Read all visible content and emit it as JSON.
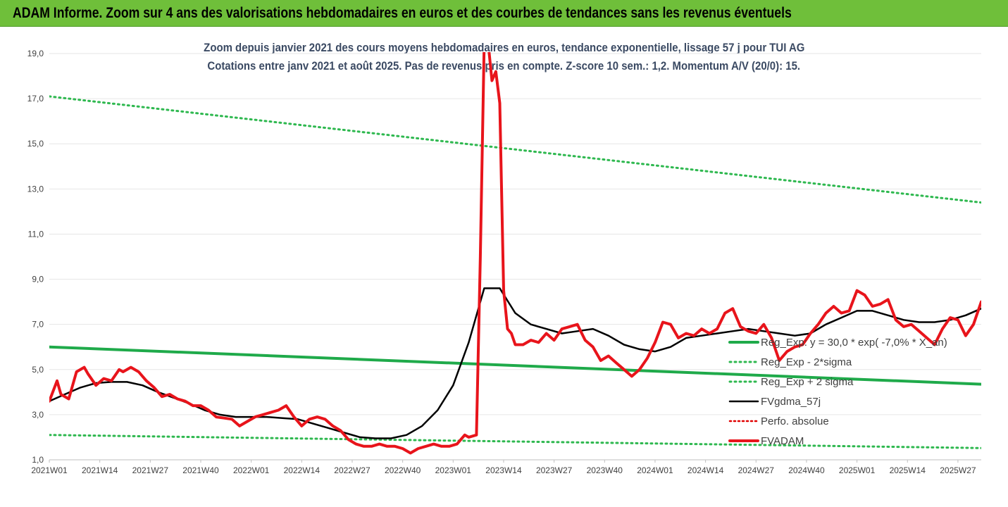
{
  "header": {
    "title": "ADAM Informe. Zoom sur 4 ans des valorisations hebdomadaires en euros et des courbes de tendances sans les revenus éventuels"
  },
  "chart_data": {
    "type": "line",
    "title": "Zoom depuis janvier 2021 des cours moyens hebdomadaires en euros, tendance exponentielle, lissage 57 j pour TUI AG",
    "subtitle": "Cotations entre janv 2021 et août 2025. Pas de revenus pris en compte. Z-score 10 sem.: 1,2. Momentum A/V (20/0): 15.",
    "xlabel": "",
    "ylabel": "",
    "ylim": [
      1.0,
      19.0
    ],
    "y_ticks": [
      "1,0",
      "3,0",
      "5,0",
      "7,0",
      "9,0",
      "11,0",
      "13,0",
      "15,0",
      "17,0",
      "19,0"
    ],
    "x_ticks": [
      "2021W01",
      "2021W14",
      "2021W27",
      "2021W40",
      "2022W01",
      "2022W14",
      "2022W27",
      "2022W40",
      "2023W01",
      "2023W14",
      "2023W27",
      "2023W40",
      "2024W01",
      "2024W14",
      "2024W27",
      "2024W40",
      "2025W01",
      "2025W14",
      "2025W27"
    ],
    "x_range_weeks": [
      0,
      240
    ],
    "grid": true,
    "legend_position": "right",
    "colors": {
      "reg": "#1faa4a",
      "band": "#2eb84f",
      "smooth": "#000000",
      "perf": "#e00000",
      "adam": "#e8141b"
    },
    "series": [
      {
        "name": "Reg_Exp: y = 30,0 * exp( -7,0% * X_an)",
        "style": "solid",
        "x": [
          0,
          240
        ],
        "values": [
          6.0,
          4.35
        ]
      },
      {
        "name": "Reg_Exp - 2*sigma",
        "style": "dotted",
        "x": [
          0,
          240
        ],
        "values": [
          2.1,
          1.52
        ]
      },
      {
        "name": "Reg_Exp + 2 sigma",
        "style": "dotted",
        "x": [
          0,
          240
        ],
        "values": [
          17.1,
          12.4
        ]
      },
      {
        "name": "FVgdma_57j",
        "style": "solid",
        "x": [
          0,
          4,
          8,
          12,
          16,
          20,
          24,
          28,
          32,
          36,
          40,
          44,
          48,
          52,
          56,
          60,
          64,
          68,
          72,
          76,
          80,
          84,
          88,
          92,
          96,
          100,
          104,
          108,
          112,
          116,
          120,
          124,
          128,
          132,
          136,
          140,
          144,
          148,
          152,
          156,
          160,
          164,
          168,
          172,
          176,
          180,
          184,
          188,
          192,
          196,
          200,
          204,
          208,
          212,
          216,
          220,
          224,
          228,
          232,
          236,
          240
        ],
        "values": [
          3.6,
          3.9,
          4.2,
          4.4,
          4.45,
          4.45,
          4.3,
          4.0,
          3.75,
          3.5,
          3.2,
          3.0,
          2.9,
          2.9,
          2.9,
          2.85,
          2.8,
          2.6,
          2.4,
          2.2,
          2.0,
          1.95,
          1.95,
          2.1,
          2.5,
          3.2,
          4.3,
          6.2,
          8.6,
          8.6,
          7.5,
          7.0,
          6.8,
          6.6,
          6.7,
          6.8,
          6.5,
          6.1,
          5.9,
          5.8,
          6.0,
          6.4,
          6.5,
          6.6,
          6.7,
          6.8,
          6.7,
          6.6,
          6.5,
          6.6,
          7.0,
          7.3,
          7.6,
          7.6,
          7.4,
          7.2,
          7.1,
          7.1,
          7.2,
          7.4,
          7.7
        ]
      },
      {
        "name": "Perfo. absolue",
        "style": "dotted",
        "x": [],
        "values": []
      },
      {
        "name": "FVADAM",
        "style": "solid",
        "x": [
          0,
          2,
          3,
          5,
          7,
          9,
          10,
          12,
          14,
          16,
          18,
          19,
          21,
          23,
          25,
          27,
          29,
          31,
          33,
          35,
          37,
          39,
          41,
          43,
          45,
          47,
          49,
          51,
          53,
          55,
          57,
          59,
          61,
          63,
          65,
          67,
          69,
          71,
          73,
          75,
          77,
          79,
          81,
          83,
          85,
          87,
          89,
          91,
          93,
          95,
          97,
          99,
          101,
          103,
          105,
          107,
          108,
          110,
          111,
          112,
          113,
          114,
          115,
          116,
          117,
          118,
          119,
          120,
          122,
          124,
          126,
          128,
          130,
          132,
          134,
          136,
          138,
          140,
          142,
          144,
          146,
          148,
          150,
          152,
          154,
          156,
          158,
          160,
          162,
          164,
          166,
          168,
          170,
          172,
          174,
          176,
          178,
          180,
          182,
          184,
          186,
          188,
          190,
          192,
          194,
          196,
          198,
          200,
          202,
          204,
          206,
          208,
          210,
          212,
          214,
          216,
          218,
          220,
          222,
          224,
          226,
          228,
          230,
          232,
          234,
          236,
          238,
          240
        ],
        "values": [
          3.6,
          4.5,
          3.9,
          3.7,
          4.9,
          5.1,
          4.8,
          4.3,
          4.6,
          4.5,
          5.0,
          4.9,
          5.1,
          4.9,
          4.5,
          4.2,
          3.8,
          3.9,
          3.7,
          3.6,
          3.4,
          3.4,
          3.2,
          2.9,
          2.85,
          2.8,
          2.5,
          2.7,
          2.9,
          3.0,
          3.1,
          3.2,
          3.4,
          2.9,
          2.5,
          2.8,
          2.9,
          2.8,
          2.5,
          2.3,
          1.9,
          1.7,
          1.6,
          1.6,
          1.7,
          1.6,
          1.6,
          1.5,
          1.3,
          1.5,
          1.6,
          1.7,
          1.6,
          1.6,
          1.7,
          2.1,
          2.0,
          2.1,
          10.0,
          19.5,
          19.5,
          17.8,
          18.2,
          16.8,
          8.5,
          6.8,
          6.6,
          6.1,
          6.1,
          6.3,
          6.2,
          6.6,
          6.3,
          6.8,
          6.9,
          7.0,
          6.3,
          6.0,
          5.4,
          5.6,
          5.3,
          5.0,
          4.7,
          5.0,
          5.5,
          6.2,
          7.1,
          7.0,
          6.4,
          6.6,
          6.5,
          6.8,
          6.6,
          6.8,
          7.5,
          7.7,
          6.9,
          6.7,
          6.6,
          7.0,
          6.4,
          5.4,
          5.8,
          6.0,
          6.1,
          6.6,
          7.0,
          7.5,
          7.8,
          7.5,
          7.6,
          8.5,
          8.3,
          7.8,
          7.9,
          8.1,
          7.2,
          6.9,
          7.0,
          6.7,
          6.4,
          6.1,
          6.8,
          7.3,
          7.2,
          6.5,
          7.0,
          8.0
        ]
      }
    ]
  }
}
